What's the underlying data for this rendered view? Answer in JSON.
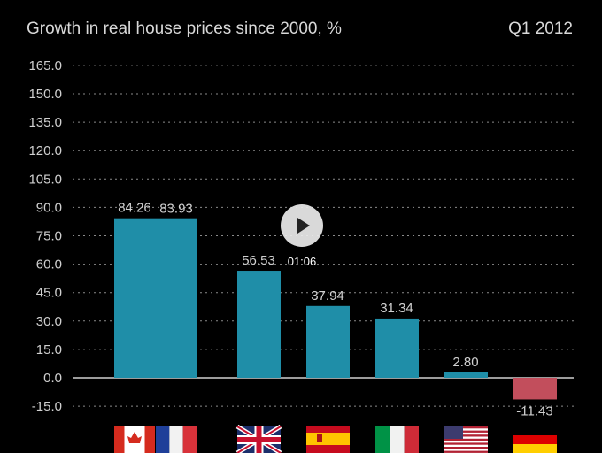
{
  "player": {
    "time": "01:06"
  },
  "colors": {
    "background": "#000000",
    "bar_positive": "#1f8ea8",
    "bar_negative": "#c24e5c",
    "grid": "#8a8a8a",
    "text": "#d9d9d9"
  },
  "chart_data": {
    "type": "bar",
    "title": "Growth in real house prices since 2000, %",
    "period": "Q1 2012",
    "categories": [
      "Canada",
      "France",
      "United Kingdom",
      "Spain",
      "Italy",
      "United States",
      "Germany"
    ],
    "category_icons": [
      "flag-canada",
      "flag-france",
      "flag-uk",
      "flag-spain",
      "flag-italy",
      "flag-usa",
      "flag-germany"
    ],
    "values": [
      84.26,
      83.93,
      56.53,
      37.94,
      31.34,
      2.8,
      -11.43
    ],
    "value_labels": [
      "84.26",
      "83.93",
      "56.53",
      "37.94",
      "31.34",
      "2.80",
      "-11.43"
    ],
    "yticks": [
      "165.0",
      "150.0",
      "135.0",
      "120.0",
      "105.0",
      "90.0",
      "75.0",
      "60.0",
      "45.0",
      "30.0",
      "15.0",
      "0.0",
      "-15.0"
    ],
    "ylim": [
      -15,
      165
    ],
    "grid": true,
    "xlabel": "",
    "ylabel": ""
  }
}
